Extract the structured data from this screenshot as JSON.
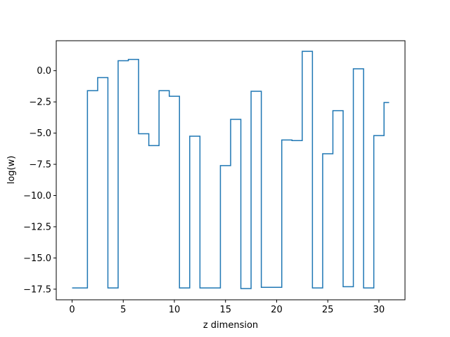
{
  "chart_data": {
    "type": "line",
    "drawstyle": "steps-mid",
    "title": "",
    "xlabel": "z dimension",
    "ylabel": "log(w)",
    "xlim": [
      -1.55,
      32.55
    ],
    "ylim": [
      -18.35,
      2.4
    ],
    "x_ticks": [
      0,
      5,
      10,
      15,
      20,
      25,
      30
    ],
    "x_tick_labels": [
      "0",
      "5",
      "10",
      "15",
      "20",
      "25",
      "30"
    ],
    "y_ticks": [
      0.0,
      -2.5,
      -5.0,
      -7.5,
      -10.0,
      -12.5,
      -15.0,
      -17.5
    ],
    "y_tick_labels": [
      "0.0",
      "−2.5",
      "−5.0",
      "−7.5",
      "−10.0",
      "−12.5",
      "−15.0",
      "−17.5"
    ],
    "grid": false,
    "colors": {
      "line": "#1f77b4",
      "axes": "#000000",
      "background": "#ffffff"
    },
    "series": [
      {
        "x": [
          0,
          1,
          2,
          3,
          4,
          5,
          6,
          7,
          8,
          9,
          10,
          11,
          12,
          13,
          14,
          15,
          16,
          17,
          18,
          19,
          20,
          21,
          22,
          23,
          24,
          25,
          26,
          27,
          28,
          29,
          30,
          31
        ],
        "values": [
          -17.4,
          -17.4,
          -1.6,
          -0.55,
          -17.4,
          0.8,
          0.9,
          -5.05,
          -6.0,
          -1.6,
          -2.05,
          -17.4,
          -5.25,
          -17.4,
          -17.4,
          -7.6,
          -3.9,
          -17.45,
          -1.65,
          -17.35,
          -17.35,
          -5.55,
          -5.6,
          1.55,
          -17.4,
          -6.65,
          -3.2,
          -17.3,
          0.15,
          -17.4,
          -5.2,
          -2.55
        ]
      }
    ]
  }
}
